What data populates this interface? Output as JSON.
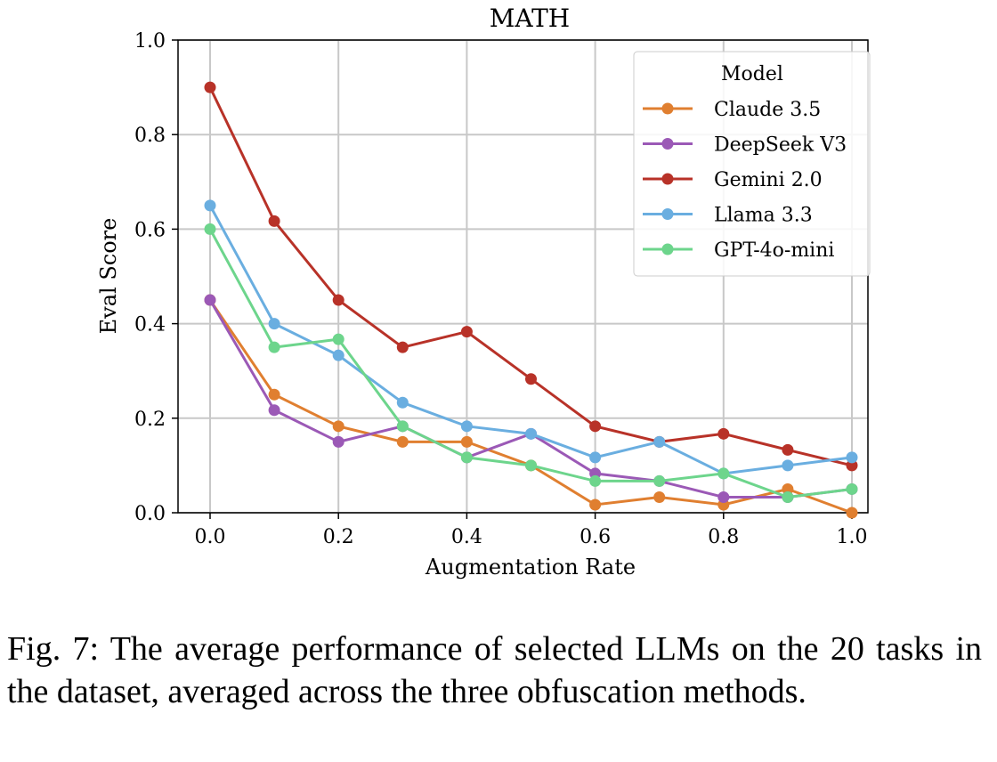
{
  "chart_data": {
    "type": "line",
    "title": "MATH",
    "xlabel": "Augmentation Rate",
    "ylabel": "Eval Score",
    "xlim": [
      -0.05,
      1.03
    ],
    "ylim": [
      0,
      1.0
    ],
    "xticks": [
      "0.0",
      "0.2",
      "0.4",
      "0.6",
      "0.8",
      "1.0"
    ],
    "yticks": [
      "0.0",
      "0.2",
      "0.4",
      "0.6",
      "0.8",
      "1.0"
    ],
    "grid": true,
    "legend_title": "Model",
    "legend_placement": "top-right",
    "x": [
      0.0,
      0.1,
      0.2,
      0.3,
      0.4,
      0.5,
      0.6,
      0.7,
      0.8,
      0.9,
      1.0
    ],
    "series": [
      {
        "name": "Claude 3.5",
        "color": "#e07f30",
        "values": [
          0.45,
          0.25,
          0.183,
          0.15,
          0.15,
          0.1,
          0.017,
          0.033,
          0.017,
          0.05,
          0.0
        ]
      },
      {
        "name": "DeepSeek V3",
        "color": "#9b59b6",
        "values": [
          0.45,
          0.217,
          0.15,
          0.183,
          0.117,
          0.167,
          0.083,
          0.067,
          0.033,
          0.033,
          0.05
        ]
      },
      {
        "name": "Gemini 2.0",
        "color": "#b83228",
        "values": [
          0.9,
          0.617,
          0.45,
          0.35,
          0.383,
          0.283,
          0.183,
          0.15,
          0.167,
          0.133,
          0.1
        ]
      },
      {
        "name": "Llama 3.3",
        "color": "#6aaee0",
        "values": [
          0.65,
          0.4,
          0.333,
          0.233,
          0.183,
          0.167,
          0.117,
          0.15,
          0.083,
          0.1,
          0.117
        ]
      },
      {
        "name": "GPT-4o-mini",
        "color": "#6dd58c",
        "values": [
          0.6,
          0.35,
          0.367,
          0.183,
          0.117,
          0.1,
          0.067,
          0.067,
          0.083,
          0.033,
          0.05
        ]
      }
    ]
  },
  "caption": "Fig. 7: The average performance of selected LLMs on the 20 tasks in the dataset, averaged across the three obfuscation methods."
}
